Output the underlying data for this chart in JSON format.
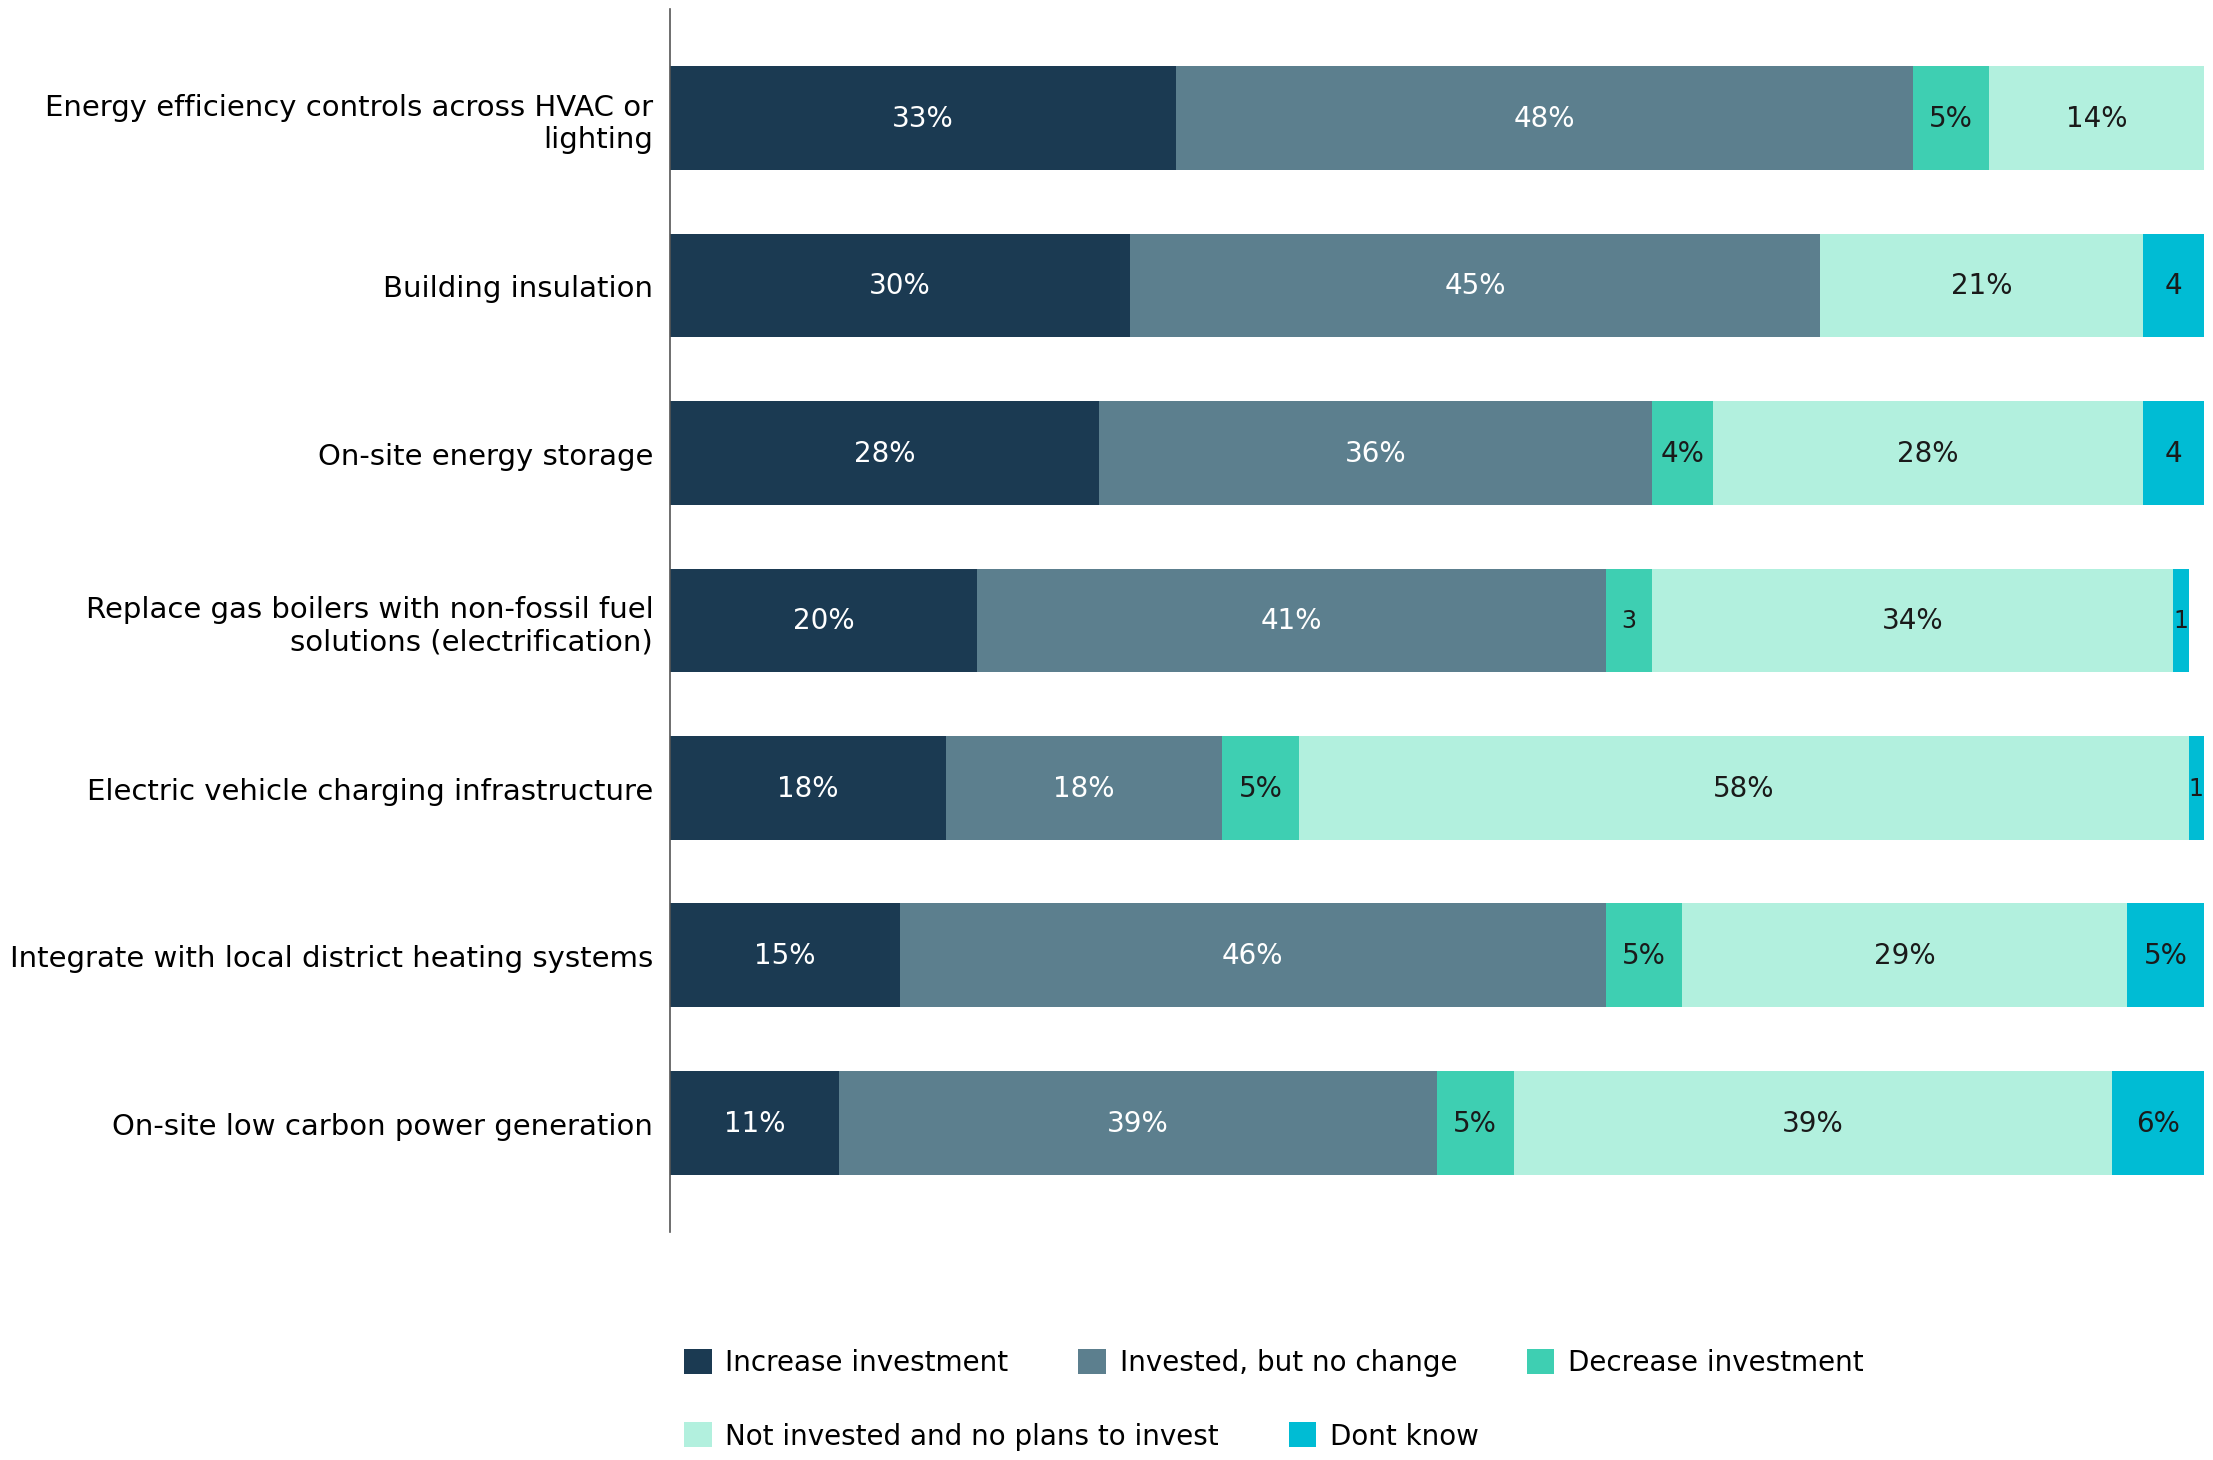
{
  "categories": [
    "Energy efficiency controls across HVAC or\nlighting",
    "Building insulation",
    "On-site energy storage",
    "Replace gas boilers with non-fossil fuel\nsolutions (electrification)",
    "Electric vehicle charging infrastructure",
    "Integrate with local district heating systems",
    "On-site low carbon power generation"
  ],
  "series": [
    {
      "name": "Increase investment",
      "color": "#1b3a52",
      "values": [
        33,
        30,
        28,
        20,
        18,
        15,
        11
      ]
    },
    {
      "name": "Invested, but no change",
      "color": "#5c7f8e",
      "values": [
        48,
        45,
        36,
        41,
        18,
        46,
        39
      ]
    },
    {
      "name": "Decrease investment",
      "color": "#3ecfb2",
      "values": [
        5,
        0,
        4,
        3,
        5,
        5,
        5
      ]
    },
    {
      "name": "Not invested and no plans to invest",
      "color": "#b2f0de",
      "values": [
        14,
        21,
        28,
        34,
        58,
        29,
        39
      ]
    },
    {
      "name": "Dont know",
      "color": "#00bcd4",
      "values": [
        0,
        4,
        4,
        1,
        1,
        5,
        6
      ]
    }
  ],
  "labels": [
    [
      "33%",
      "48%",
      "5%",
      "14%",
      ""
    ],
    [
      "30%",
      "45%",
      "",
      "21%",
      "4"
    ],
    [
      "28%",
      "36%",
      "4%",
      "28%",
      "4"
    ],
    [
      "20%",
      "41%",
      "3",
      "34%",
      "1"
    ],
    [
      "18%",
      "18%",
      "5%",
      "58%",
      "1"
    ],
    [
      "15%",
      "46%",
      "5%",
      "29%",
      "5%"
    ],
    [
      "11%",
      "39%",
      "5%",
      "39%",
      "6%"
    ]
  ],
  "background_color": "#ffffff",
  "bar_height": 0.62,
  "xlim": [
    0,
    100
  ],
  "label_fontsize": 20,
  "small_label_fontsize": 17,
  "ytick_fontsize": 21,
  "legend_fontsize": 20
}
